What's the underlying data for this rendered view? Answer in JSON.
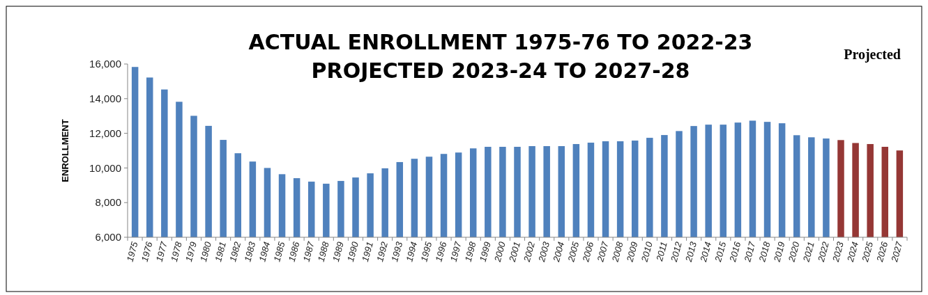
{
  "chart_data": {
    "type": "bar",
    "title": "ACTUAL ENROLLMENT 1975-76 TO 2022-23",
    "subtitle": "PROJECTED 2023-24 TO 2027-28",
    "ylabel": "ENROLLMENT",
    "annotations": [
      "Projected"
    ],
    "categories": [
      "1975",
      "1976",
      "1977",
      "1978",
      "1979",
      "1980",
      "1981",
      "1982",
      "1983",
      "1984",
      "1985",
      "1986",
      "1987",
      "1988",
      "1989",
      "1990",
      "1991",
      "1992",
      "1993",
      "1994",
      "1995",
      "1996",
      "1997",
      "1998",
      "1999",
      "2000",
      "2001",
      "2002",
      "2003",
      "2004",
      "2005",
      "2006",
      "2007",
      "2008",
      "2009",
      "2010",
      "2011",
      "2012",
      "2013",
      "2014",
      "2015",
      "2016",
      "2017",
      "2018",
      "2019",
      "2020",
      "2021",
      "2022",
      "2023",
      "2024",
      "2025",
      "2026",
      "2027"
    ],
    "values": [
      15830,
      15220,
      14530,
      13820,
      13010,
      12430,
      11620,
      10850,
      10370,
      10000,
      9640,
      9410,
      9210,
      9090,
      9250,
      9450,
      9690,
      9980,
      10340,
      10530,
      10650,
      10810,
      10890,
      11130,
      11220,
      11220,
      11220,
      11260,
      11260,
      11260,
      11380,
      11460,
      11540,
      11540,
      11580,
      11740,
      11900,
      12130,
      12420,
      12500,
      12500,
      12620,
      12730,
      12660,
      12580,
      11890,
      11770,
      11700,
      11610,
      11440,
      11380,
      11220,
      11010
    ],
    "colors": [
      "#4f81bd",
      "#4f81bd",
      "#4f81bd",
      "#4f81bd",
      "#4f81bd",
      "#4f81bd",
      "#4f81bd",
      "#4f81bd",
      "#4f81bd",
      "#4f81bd",
      "#4f81bd",
      "#4f81bd",
      "#4f81bd",
      "#4f81bd",
      "#4f81bd",
      "#4f81bd",
      "#4f81bd",
      "#4f81bd",
      "#4f81bd",
      "#4f81bd",
      "#4f81bd",
      "#4f81bd",
      "#4f81bd",
      "#4f81bd",
      "#4f81bd",
      "#4f81bd",
      "#4f81bd",
      "#4f81bd",
      "#4f81bd",
      "#4f81bd",
      "#4f81bd",
      "#4f81bd",
      "#4f81bd",
      "#4f81bd",
      "#4f81bd",
      "#4f81bd",
      "#4f81bd",
      "#4f81bd",
      "#4f81bd",
      "#4f81bd",
      "#4f81bd",
      "#4f81bd",
      "#4f81bd",
      "#4f81bd",
      "#4f81bd",
      "#4f81bd",
      "#4f81bd",
      "#4f81bd",
      "#953735",
      "#953735",
      "#953735",
      "#953735",
      "#953735"
    ],
    "ylim": [
      6000,
      16000
    ],
    "yticks": [
      {
        "value": 6000,
        "label": "6,000"
      },
      {
        "value": 8000,
        "label": "8,000"
      },
      {
        "value": 10000,
        "label": "10,000"
      },
      {
        "value": 12000,
        "label": "12,000"
      },
      {
        "value": 14000,
        "label": "14,000"
      },
      {
        "value": 16000,
        "label": "16,000"
      }
    ]
  }
}
